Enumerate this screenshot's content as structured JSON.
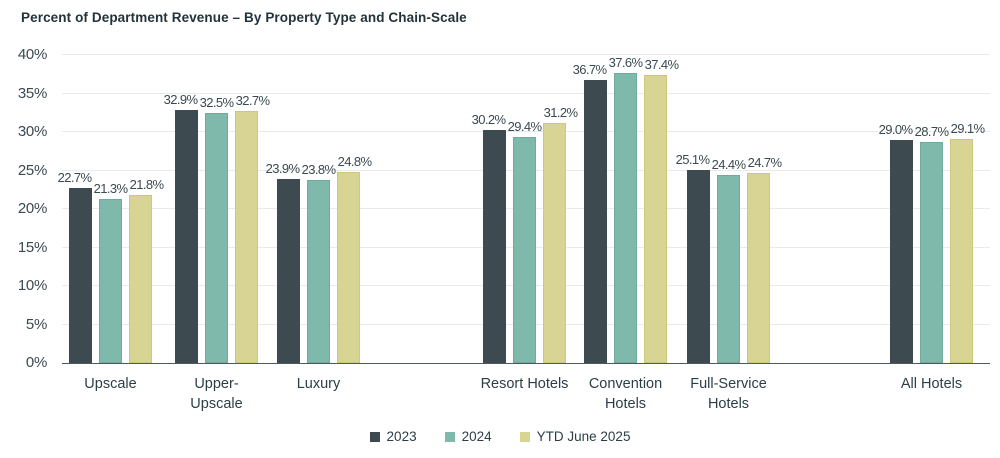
{
  "chart_data": {
    "type": "bar",
    "title": "Percent of Department Revenue – By Property Type and Chain-Scale",
    "categories": [
      "Upscale",
      "Upper-Upscale",
      "Luxury",
      "Resort Hotels",
      "Convention Hotels",
      "Full-Service Hotels",
      "All Hotels"
    ],
    "series": [
      {
        "name": "2023",
        "color": "#3d4b50",
        "border_color": "#3d4b50",
        "values": [
          22.7,
          32.9,
          23.9,
          30.2,
          36.7,
          25.1,
          29.0
        ]
      },
      {
        "name": "2024",
        "color": "#7fb9ab",
        "border_color": "#6fab9c",
        "values": [
          21.3,
          32.5,
          23.8,
          29.4,
          37.6,
          24.4,
          28.7
        ]
      },
      {
        "name": "YTD June 2025",
        "color": "#d8d493",
        "border_color": "#cdc87f",
        "values": [
          21.8,
          32.7,
          24.8,
          31.2,
          37.4,
          24.7,
          29.1
        ]
      }
    ],
    "ylabel": "",
    "xlabel": "",
    "ylim": [
      0,
      40
    ],
    "y_tick_step": 5,
    "y_ticks": [
      "0%",
      "5%",
      "10%",
      "15%",
      "20%",
      "25%",
      "30%",
      "35%",
      "40%"
    ],
    "data_labels": "value_with_one_decimal_and_percent",
    "grid": "horizontal",
    "legend_position": "bottom"
  },
  "colors": {
    "background": "#ffffff",
    "gridline": "#e9eaea",
    "baseline": "#4b5a60",
    "text": "#2c3e46"
  }
}
